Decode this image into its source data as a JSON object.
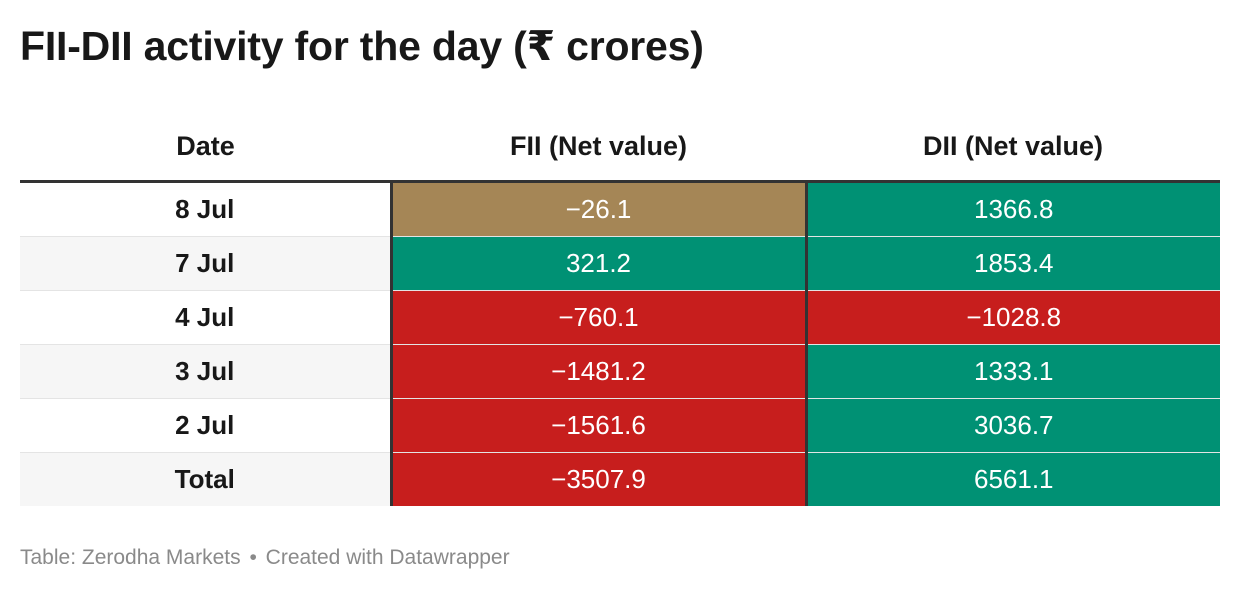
{
  "title": "FII-DII activity for the day (₹ crores)",
  "footer": {
    "source": "Table: Zerodha Markets",
    "separator": "•",
    "credit": "Created with Datawrapper"
  },
  "colors": {
    "positive": "#009174",
    "negative": "#c71e1d",
    "neutral": "#a58656"
  },
  "chart_data": {
    "type": "table",
    "title": "FII-DII activity for the day (₹ crores)",
    "columns": [
      "Date",
      "FII (Net value)",
      "DII (Net value)"
    ],
    "rows": [
      {
        "date": "8 Jul",
        "fii": "−26.1",
        "dii": "1366.8",
        "fii_value": -26.1,
        "dii_value": 1366.8,
        "fii_color": "#a58656",
        "dii_color": "#009174"
      },
      {
        "date": "7 Jul",
        "fii": "321.2",
        "dii": "1853.4",
        "fii_value": 321.2,
        "dii_value": 1853.4,
        "fii_color": "#009174",
        "dii_color": "#009174"
      },
      {
        "date": "4 Jul",
        "fii": "−760.1",
        "dii": "−1028.8",
        "fii_value": -760.1,
        "dii_value": -1028.8,
        "fii_color": "#c71e1d",
        "dii_color": "#c71e1d"
      },
      {
        "date": "3 Jul",
        "fii": "−1481.2",
        "dii": "1333.1",
        "fii_value": -1481.2,
        "dii_value": 1333.1,
        "fii_color": "#c71e1d",
        "dii_color": "#009174"
      },
      {
        "date": "2 Jul",
        "fii": "−1561.6",
        "dii": "3036.7",
        "fii_value": -1561.6,
        "dii_value": 3036.7,
        "fii_color": "#c71e1d",
        "dii_color": "#009174"
      },
      {
        "date": "Total",
        "fii": "−3507.9",
        "dii": "6561.1",
        "fii_value": -3507.9,
        "dii_value": 6561.1,
        "fii_color": "#c71e1d",
        "dii_color": "#009174"
      }
    ]
  }
}
